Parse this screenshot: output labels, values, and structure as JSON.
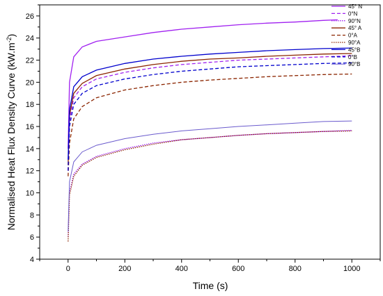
{
  "chart_data": {
    "type": "line",
    "xlabel": "Time (s)",
    "ylabel": "Normalised Heat Flux Density Curve (kW.m",
    "ylabel_superscript": "-2",
    "ylabel_suffix": ")",
    "xlim": [
      -100,
      1100
    ],
    "ylim": [
      4,
      27
    ],
    "xticks": [
      0,
      200,
      400,
      600,
      800,
      1000
    ],
    "yticks": [
      4,
      6,
      8,
      10,
      12,
      14,
      16,
      18,
      20,
      22,
      24,
      26
    ],
    "legend_position": "top-right",
    "grid": false,
    "series": [
      {
        "name": "45° N",
        "color": "#a020f0",
        "dash": "solid",
        "x": [
          0,
          5,
          20,
          50,
          100,
          200,
          300,
          400,
          500,
          600,
          700,
          800,
          900,
          950
        ],
        "y": [
          14.0,
          20.0,
          22.3,
          23.2,
          23.7,
          24.1,
          24.5,
          24.8,
          25.0,
          25.2,
          25.35,
          25.45,
          25.6,
          25.65
        ]
      },
      {
        "name": "0°N",
        "color": "#a020f0",
        "dash": "dash",
        "x": [
          0,
          5,
          20,
          50,
          100,
          200,
          300,
          400,
          500,
          600,
          700,
          800,
          900,
          1000
        ],
        "y": [
          12.0,
          16.5,
          18.6,
          19.6,
          20.3,
          20.9,
          21.3,
          21.6,
          21.8,
          22.0,
          22.1,
          22.2,
          22.3,
          22.4
        ]
      },
      {
        "name": "90°N",
        "color": "#a020f0",
        "dash": "dot",
        "x": [
          0,
          5,
          20,
          50,
          100,
          200,
          300,
          400,
          500,
          600,
          700,
          800,
          900,
          1000
        ],
        "y": [
          6.0,
          10.0,
          11.7,
          12.6,
          13.3,
          14.0,
          14.5,
          14.8,
          15.0,
          15.2,
          15.35,
          15.45,
          15.55,
          15.65
        ]
      },
      {
        "name": "45° A",
        "color": "#8b2500",
        "dash": "solid",
        "x": [
          0,
          5,
          20,
          50,
          100,
          200,
          300,
          400,
          500,
          600,
          700,
          800,
          900,
          1000
        ],
        "y": [
          12.5,
          17.0,
          19.0,
          19.9,
          20.6,
          21.2,
          21.6,
          21.9,
          22.1,
          22.2,
          22.35,
          22.45,
          22.55,
          22.6
        ]
      },
      {
        "name": "0°A",
        "color": "#8b2500",
        "dash": "dash",
        "x": [
          0,
          5,
          20,
          50,
          100,
          200,
          300,
          400,
          500,
          600,
          700,
          800,
          900,
          1000
        ],
        "y": [
          11.5,
          14.5,
          16.7,
          17.8,
          18.6,
          19.3,
          19.7,
          20.0,
          20.2,
          20.35,
          20.5,
          20.6,
          20.7,
          20.75
        ]
      },
      {
        "name": "90°A",
        "color": "#8b2500",
        "dash": "dot",
        "x": [
          0,
          5,
          20,
          50,
          100,
          200,
          300,
          400,
          500,
          600,
          700,
          800,
          900,
          1000
        ],
        "y": [
          5.6,
          9.8,
          11.5,
          12.5,
          13.2,
          13.9,
          14.4,
          14.8,
          15.0,
          15.2,
          15.35,
          15.45,
          15.55,
          15.6
        ]
      },
      {
        "name": "45°B",
        "color": "#0000cd",
        "dash": "solid",
        "x": [
          0,
          5,
          20,
          50,
          100,
          200,
          300,
          400,
          500,
          600,
          700,
          800,
          900,
          1000
        ],
        "y": [
          13.0,
          17.5,
          19.6,
          20.5,
          21.1,
          21.7,
          22.1,
          22.35,
          22.55,
          22.7,
          22.85,
          22.95,
          23.05,
          23.1
        ]
      },
      {
        "name": "0°B",
        "color": "#0000cd",
        "dash": "dash",
        "x": [
          0,
          5,
          20,
          50,
          100,
          200,
          300,
          400,
          500,
          600,
          700,
          800,
          900,
          1000
        ],
        "y": [
          12.0,
          16.0,
          18.0,
          19.0,
          19.7,
          20.3,
          20.7,
          21.0,
          21.2,
          21.4,
          21.5,
          21.6,
          21.7,
          21.75
        ]
      },
      {
        "name": "90°B",
        "color": "#6a5acd",
        "dash": "solid-thin",
        "x": [
          0,
          5,
          20,
          50,
          100,
          200,
          300,
          400,
          500,
          600,
          700,
          800,
          900,
          1000
        ],
        "y": [
          6.5,
          11.0,
          12.8,
          13.7,
          14.3,
          14.9,
          15.3,
          15.6,
          15.8,
          16.0,
          16.15,
          16.3,
          16.45,
          16.5
        ]
      }
    ]
  }
}
